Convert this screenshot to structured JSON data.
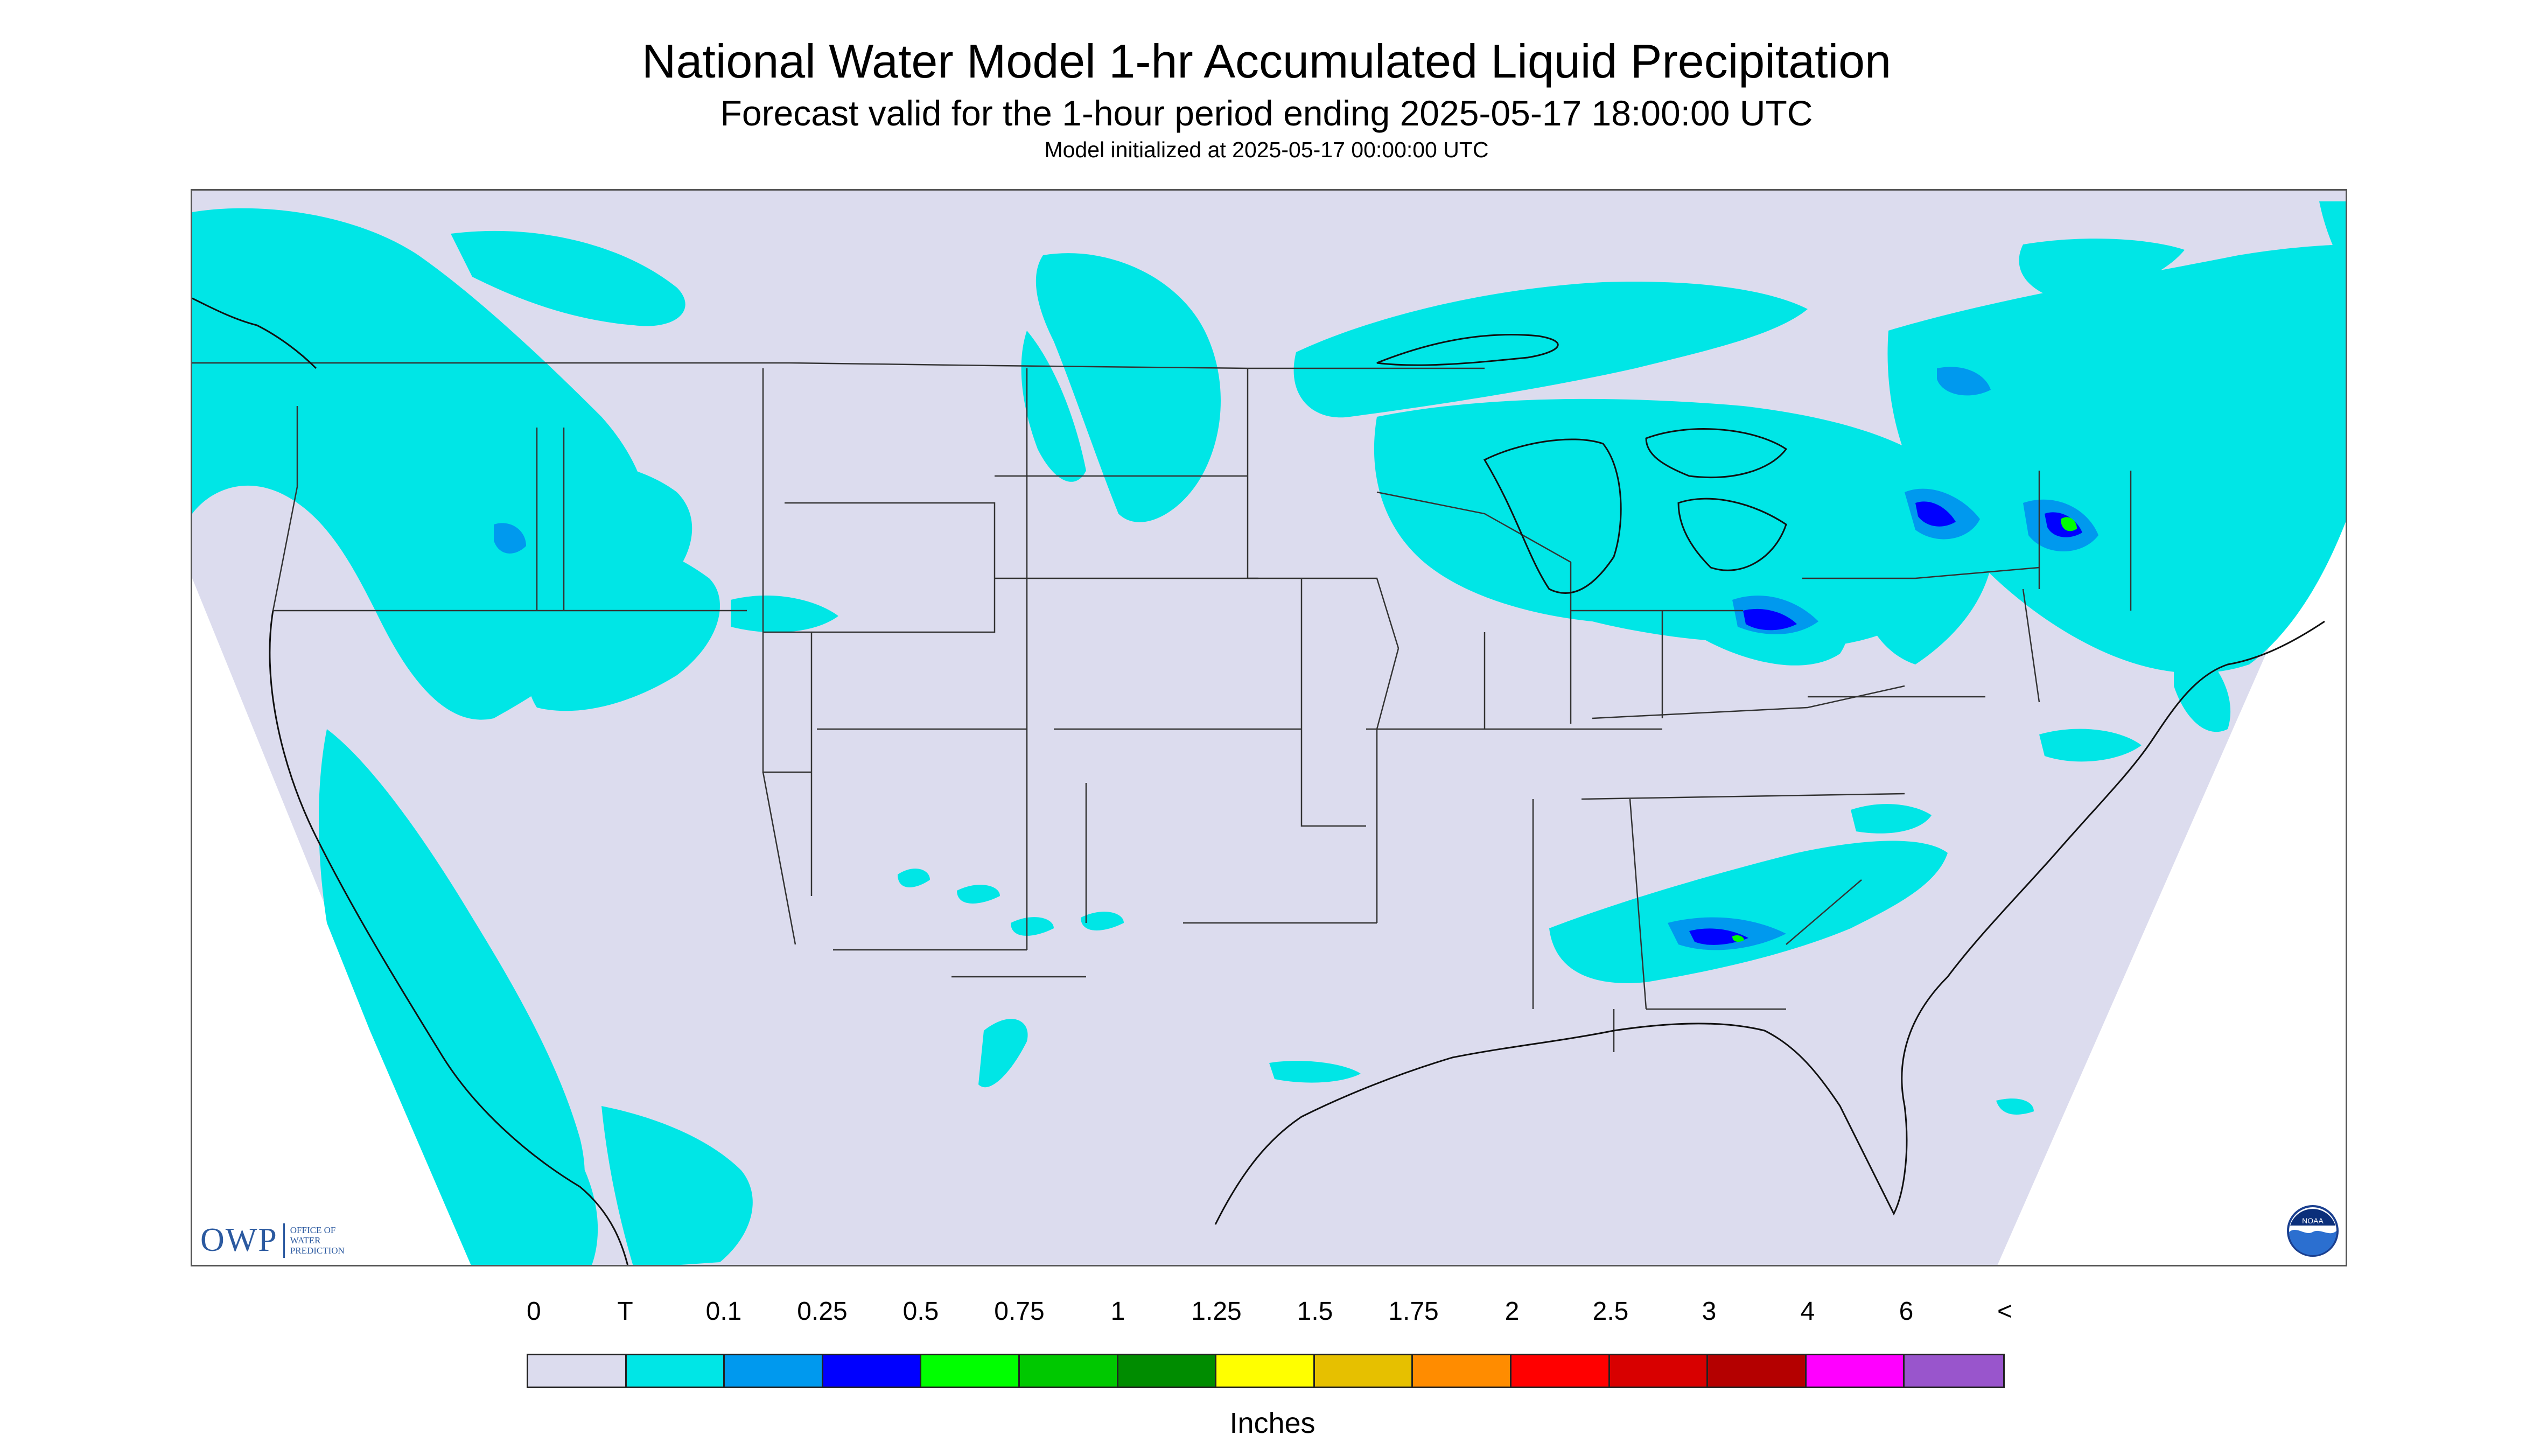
{
  "header": {
    "title": "National Water Model 1-hr Accumulated Liquid Precipitation",
    "subtitle": "Forecast valid for the 1-hour period ending 2025-05-17 18:00:00 UTC",
    "init": "Model initialized at 2025-05-17 00:00:00 UTC"
  },
  "logos": {
    "owp_mark": "OWP",
    "owp_text": [
      "Office of",
      "Water",
      "Prediction"
    ],
    "noaa_mark": "NOAA"
  },
  "legend": {
    "labels": [
      "0",
      "T",
      "0.1",
      "0.25",
      "0.5",
      "0.75",
      "1",
      "1.25",
      "1.5",
      "1.75",
      "2",
      "2.5",
      "3",
      "4",
      "6",
      "<"
    ],
    "colors": [
      "#dcdcee",
      "#00e6e6",
      "#0099ee",
      "#0000ff",
      "#00ff00",
      "#00c800",
      "#008c00",
      "#ffff00",
      "#e6c000",
      "#ff8c00",
      "#ff0000",
      "#d80000",
      "#b40000",
      "#ff00ff",
      "#9955cc"
    ],
    "units": "Inches"
  },
  "colors": {
    "no_data": "#ffffff",
    "base_precip": "#dcdcee",
    "trace": "#00e6e6",
    "light": "#0099ee",
    "moderate": "#0000ff",
    "heavy": "#00ff00",
    "boundaries": "#333333"
  }
}
